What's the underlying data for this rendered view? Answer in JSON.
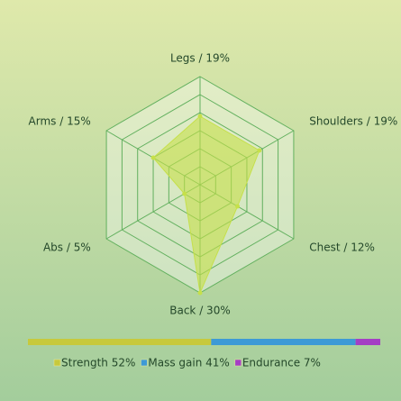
{
  "chart_data": [
    {
      "type": "radar",
      "categories": [
        "Legs / 19%",
        "Shoulders / 19%",
        "Chest / 12%",
        "Back / 30%",
        "Abs / 5%",
        "Arms / 15%"
      ],
      "values": [
        19,
        19,
        12,
        30,
        5,
        15
      ],
      "color": "#c6e04a",
      "rlim": [
        0,
        30
      ],
      "rticks": [
        5,
        10,
        15,
        20,
        25,
        30
      ],
      "grid": true
    },
    {
      "type": "stacked-bar",
      "series": [
        {
          "name": "Strength 52%",
          "color": "#c7c93c",
          "values": [
            52
          ]
        },
        {
          "name": "Mass gain 41%",
          "color": "#3d9ad6",
          "values": [
            41
          ]
        },
        {
          "name": "Endurance 7%",
          "color": "#a43fc4",
          "values": [
            7
          ]
        }
      ],
      "xlim": [
        0,
        100
      ]
    }
  ]
}
